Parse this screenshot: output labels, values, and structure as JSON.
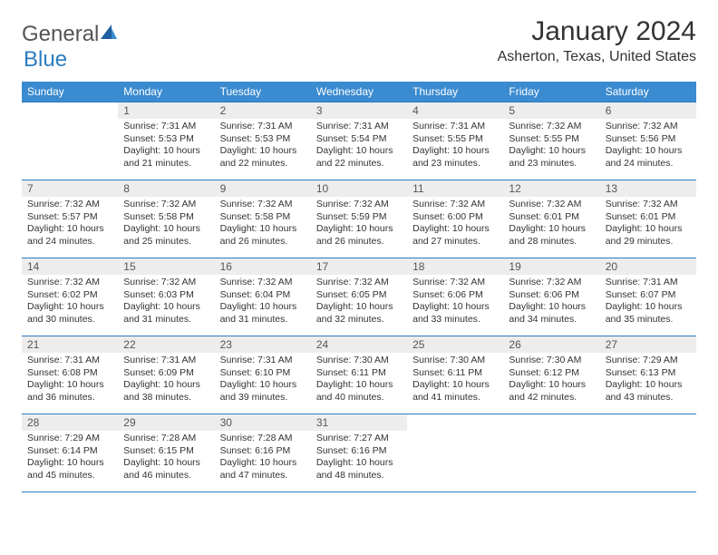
{
  "logo": {
    "text1": "General",
    "text2": "Blue"
  },
  "title": "January 2024",
  "location": "Asherton, Texas, United States",
  "colors": {
    "header_bg": "#3a8bd0",
    "header_text": "#ffffff",
    "border": "#2b7cc0",
    "daynum_bg": "#ededed",
    "daynum_text": "#555555",
    "body_text": "#333333",
    "logo_gray": "#555555",
    "logo_blue": "#2b7cc0",
    "page_bg": "#ffffff"
  },
  "fonts": {
    "title_pt": 30,
    "location_pt": 16,
    "dayhead_pt": 12,
    "daynum_pt": 12,
    "body_pt": 10.5
  },
  "day_headers": [
    "Sunday",
    "Monday",
    "Tuesday",
    "Wednesday",
    "Thursday",
    "Friday",
    "Saturday"
  ],
  "weeks": [
    [
      {
        "n": "",
        "sr": "",
        "ss": "",
        "dl": ""
      },
      {
        "n": "1",
        "sr": "Sunrise: 7:31 AM",
        "ss": "Sunset: 5:53 PM",
        "dl": "Daylight: 10 hours and 21 minutes."
      },
      {
        "n": "2",
        "sr": "Sunrise: 7:31 AM",
        "ss": "Sunset: 5:53 PM",
        "dl": "Daylight: 10 hours and 22 minutes."
      },
      {
        "n": "3",
        "sr": "Sunrise: 7:31 AM",
        "ss": "Sunset: 5:54 PM",
        "dl": "Daylight: 10 hours and 22 minutes."
      },
      {
        "n": "4",
        "sr": "Sunrise: 7:31 AM",
        "ss": "Sunset: 5:55 PM",
        "dl": "Daylight: 10 hours and 23 minutes."
      },
      {
        "n": "5",
        "sr": "Sunrise: 7:32 AM",
        "ss": "Sunset: 5:55 PM",
        "dl": "Daylight: 10 hours and 23 minutes."
      },
      {
        "n": "6",
        "sr": "Sunrise: 7:32 AM",
        "ss": "Sunset: 5:56 PM",
        "dl": "Daylight: 10 hours and 24 minutes."
      }
    ],
    [
      {
        "n": "7",
        "sr": "Sunrise: 7:32 AM",
        "ss": "Sunset: 5:57 PM",
        "dl": "Daylight: 10 hours and 24 minutes."
      },
      {
        "n": "8",
        "sr": "Sunrise: 7:32 AM",
        "ss": "Sunset: 5:58 PM",
        "dl": "Daylight: 10 hours and 25 minutes."
      },
      {
        "n": "9",
        "sr": "Sunrise: 7:32 AM",
        "ss": "Sunset: 5:58 PM",
        "dl": "Daylight: 10 hours and 26 minutes."
      },
      {
        "n": "10",
        "sr": "Sunrise: 7:32 AM",
        "ss": "Sunset: 5:59 PM",
        "dl": "Daylight: 10 hours and 26 minutes."
      },
      {
        "n": "11",
        "sr": "Sunrise: 7:32 AM",
        "ss": "Sunset: 6:00 PM",
        "dl": "Daylight: 10 hours and 27 minutes."
      },
      {
        "n": "12",
        "sr": "Sunrise: 7:32 AM",
        "ss": "Sunset: 6:01 PM",
        "dl": "Daylight: 10 hours and 28 minutes."
      },
      {
        "n": "13",
        "sr": "Sunrise: 7:32 AM",
        "ss": "Sunset: 6:01 PM",
        "dl": "Daylight: 10 hours and 29 minutes."
      }
    ],
    [
      {
        "n": "14",
        "sr": "Sunrise: 7:32 AM",
        "ss": "Sunset: 6:02 PM",
        "dl": "Daylight: 10 hours and 30 minutes."
      },
      {
        "n": "15",
        "sr": "Sunrise: 7:32 AM",
        "ss": "Sunset: 6:03 PM",
        "dl": "Daylight: 10 hours and 31 minutes."
      },
      {
        "n": "16",
        "sr": "Sunrise: 7:32 AM",
        "ss": "Sunset: 6:04 PM",
        "dl": "Daylight: 10 hours and 31 minutes."
      },
      {
        "n": "17",
        "sr": "Sunrise: 7:32 AM",
        "ss": "Sunset: 6:05 PM",
        "dl": "Daylight: 10 hours and 32 minutes."
      },
      {
        "n": "18",
        "sr": "Sunrise: 7:32 AM",
        "ss": "Sunset: 6:06 PM",
        "dl": "Daylight: 10 hours and 33 minutes."
      },
      {
        "n": "19",
        "sr": "Sunrise: 7:32 AM",
        "ss": "Sunset: 6:06 PM",
        "dl": "Daylight: 10 hours and 34 minutes."
      },
      {
        "n": "20",
        "sr": "Sunrise: 7:31 AM",
        "ss": "Sunset: 6:07 PM",
        "dl": "Daylight: 10 hours and 35 minutes."
      }
    ],
    [
      {
        "n": "21",
        "sr": "Sunrise: 7:31 AM",
        "ss": "Sunset: 6:08 PM",
        "dl": "Daylight: 10 hours and 36 minutes."
      },
      {
        "n": "22",
        "sr": "Sunrise: 7:31 AM",
        "ss": "Sunset: 6:09 PM",
        "dl": "Daylight: 10 hours and 38 minutes."
      },
      {
        "n": "23",
        "sr": "Sunrise: 7:31 AM",
        "ss": "Sunset: 6:10 PM",
        "dl": "Daylight: 10 hours and 39 minutes."
      },
      {
        "n": "24",
        "sr": "Sunrise: 7:30 AM",
        "ss": "Sunset: 6:11 PM",
        "dl": "Daylight: 10 hours and 40 minutes."
      },
      {
        "n": "25",
        "sr": "Sunrise: 7:30 AM",
        "ss": "Sunset: 6:11 PM",
        "dl": "Daylight: 10 hours and 41 minutes."
      },
      {
        "n": "26",
        "sr": "Sunrise: 7:30 AM",
        "ss": "Sunset: 6:12 PM",
        "dl": "Daylight: 10 hours and 42 minutes."
      },
      {
        "n": "27",
        "sr": "Sunrise: 7:29 AM",
        "ss": "Sunset: 6:13 PM",
        "dl": "Daylight: 10 hours and 43 minutes."
      }
    ],
    [
      {
        "n": "28",
        "sr": "Sunrise: 7:29 AM",
        "ss": "Sunset: 6:14 PM",
        "dl": "Daylight: 10 hours and 45 minutes."
      },
      {
        "n": "29",
        "sr": "Sunrise: 7:28 AM",
        "ss": "Sunset: 6:15 PM",
        "dl": "Daylight: 10 hours and 46 minutes."
      },
      {
        "n": "30",
        "sr": "Sunrise: 7:28 AM",
        "ss": "Sunset: 6:16 PM",
        "dl": "Daylight: 10 hours and 47 minutes."
      },
      {
        "n": "31",
        "sr": "Sunrise: 7:27 AM",
        "ss": "Sunset: 6:16 PM",
        "dl": "Daylight: 10 hours and 48 minutes."
      },
      {
        "n": "",
        "sr": "",
        "ss": "",
        "dl": ""
      },
      {
        "n": "",
        "sr": "",
        "ss": "",
        "dl": ""
      },
      {
        "n": "",
        "sr": "",
        "ss": "",
        "dl": ""
      }
    ]
  ]
}
